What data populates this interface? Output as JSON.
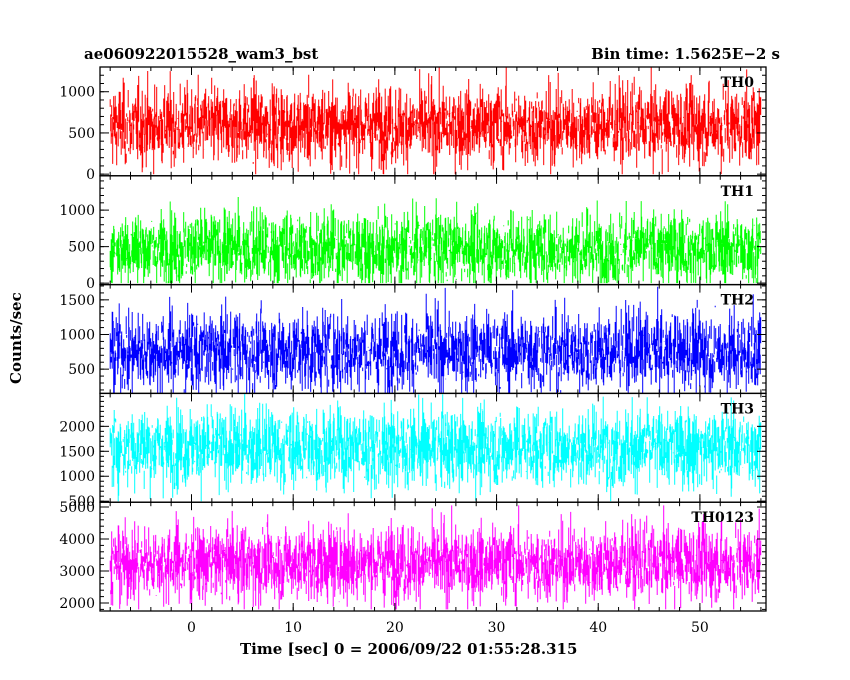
{
  "header": {
    "title_left": "ae060922015528_wam3_bst",
    "title_right": "Bin time: 1.5625E−2 s"
  },
  "chart_data": {
    "type": "line",
    "xlabel": "Time [sec] 0 = 2006/09/22 01:55:28.315",
    "ylabel": "Counts/sec",
    "xlim": [
      -9,
      56.5
    ],
    "xticks": [
      0,
      10,
      20,
      30,
      40,
      50
    ],
    "x_data_range": [
      -8,
      56
    ],
    "panels": [
      {
        "name": "TH0",
        "color": "#ff0000",
        "ylim": [
          -20,
          1300
        ],
        "yticks": [
          0,
          500,
          1000
        ],
        "mean": 590,
        "low": 0,
        "high": 1300
      },
      {
        "name": "TH1",
        "color": "#00ff00",
        "ylim": [
          -20,
          1470
        ],
        "yticks": [
          0,
          500,
          1000
        ],
        "mean": 480,
        "low": 0,
        "high": 1380
      },
      {
        "name": "TH2",
        "color": "#0000ff",
        "ylim": [
          150,
          1720
        ],
        "yticks": [
          500,
          1000,
          1500
        ],
        "mean": 760,
        "low": 150,
        "high": 1720
      },
      {
        "name": "TH3",
        "color": "#00ffff",
        "ylim": [
          480,
          2660
        ],
        "yticks": [
          500,
          1000,
          1500,
          2000
        ],
        "mean": 1580,
        "low": 500,
        "high": 2650
      },
      {
        "name": "TH0123",
        "color": "#ff00ff",
        "ylim": [
          1750,
          5150
        ],
        "yticks": [
          2000,
          3000,
          4000,
          5000
        ],
        "mean": 3250,
        "low": 1800,
        "high": 5050
      }
    ]
  }
}
